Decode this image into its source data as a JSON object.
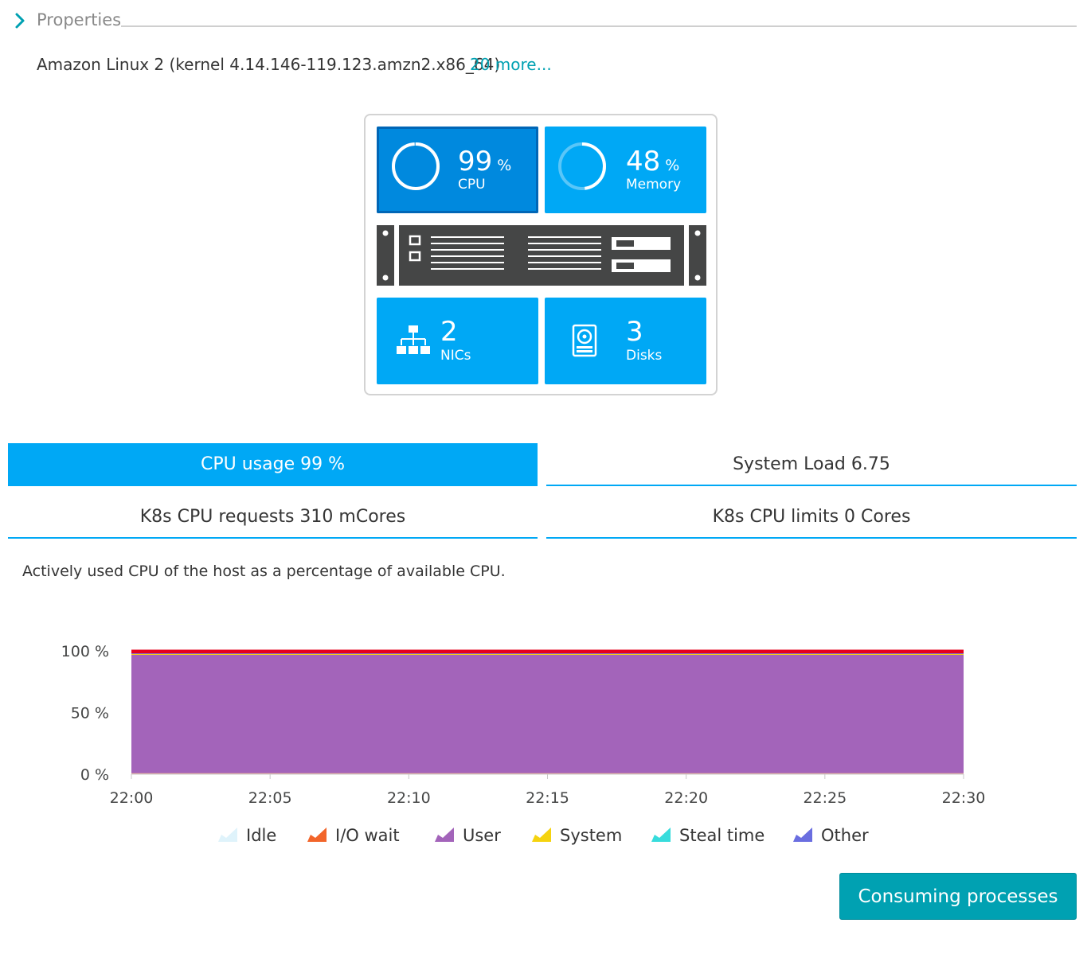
{
  "properties": {
    "title": "Properties",
    "os": "Amazon Linux 2 (kernel 4.14.146-119.123.amzn2.x86_64)",
    "more_link": "20 more..."
  },
  "host": {
    "cpu": {
      "value": "99",
      "unit": "%",
      "label": "CPU",
      "fraction": 0.99
    },
    "memory": {
      "value": "48",
      "unit": "%",
      "label": "Memory",
      "fraction": 0.48
    },
    "nics": {
      "value": "2",
      "label": "NICs",
      "icon": "network-icon"
    },
    "disks": {
      "value": "3",
      "label": "Disks",
      "icon": "disk-icon"
    }
  },
  "tabs": {
    "cpu_usage": "CPU usage 99 %",
    "system_load": "System Load 6.75",
    "k8s_requests": "K8s CPU requests 310 mCores",
    "k8s_limits": "K8s CPU limits 0 Cores"
  },
  "description": "Actively used CPU of the host as a percentage of available CPU.",
  "chart_data": {
    "type": "area",
    "stacked": true,
    "x": [
      "22:00",
      "22:05",
      "22:10",
      "22:15",
      "22:20",
      "22:25",
      "22:30"
    ],
    "y_ticks": [
      "100 %",
      "50 %",
      "0 %"
    ],
    "ylim": [
      0,
      100
    ],
    "grid": false,
    "legend_position": "bottom",
    "series": [
      {
        "name": "Idle",
        "color": "#dff3fb",
        "values": [
          0.5,
          0.5,
          0.5,
          0.5,
          0.5,
          0.5,
          0.5
        ]
      },
      {
        "name": "I/O wait",
        "color": "#f2652a",
        "values": [
          0.3,
          0.3,
          0.3,
          0.3,
          0.3,
          0.3,
          0.3
        ]
      },
      {
        "name": "User",
        "color": "#a364ba",
        "values": [
          96,
          96,
          96,
          96,
          96,
          96,
          96
        ]
      },
      {
        "name": "System",
        "color": "#f5d30f",
        "values": [
          0.6,
          0.6,
          0.6,
          0.6,
          0.6,
          0.6,
          0.6
        ]
      },
      {
        "name": "Steal time",
        "color": "#37dcdc",
        "values": [
          0,
          0,
          0,
          0,
          0,
          0,
          0
        ]
      },
      {
        "name": "Other",
        "color": "#6a6ee0",
        "values": [
          0.6,
          0.6,
          0.6,
          0.6,
          0.6,
          0.6,
          0.6
        ]
      }
    ],
    "top_band_color": "#e5001e",
    "top_band_value": 3
  },
  "actions": {
    "consuming_processes": "Consuming processes"
  }
}
